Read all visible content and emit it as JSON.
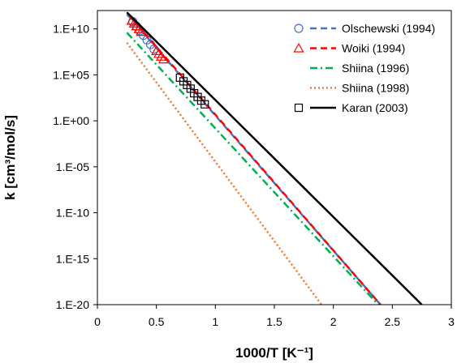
{
  "chart_data": {
    "type": "scatter",
    "xlabel": "1000/T [K⁻¹]",
    "ylabel": "k [cm³/mol/s]",
    "xlim": [
      0,
      3
    ],
    "ylim_log10": [
      -20,
      12
    ],
    "x_ticks": [
      "0",
      "0.5",
      "1",
      "1.5",
      "2",
      "2.5",
      "3"
    ],
    "y_ticks": [
      "1.E-20",
      "1.E-15",
      "1.E-10",
      "1.E-05",
      "1.E+00",
      "1.E+05",
      "1.E+10"
    ],
    "y_scale": "log",
    "grid": false,
    "legend_position": "top-right",
    "series": [
      {
        "name": "Olschewski (1994)",
        "color": "#4472C4",
        "marker": "circle",
        "line_style": "dashed",
        "line": [
          [
            0.25,
            11.6
          ],
          [
            2.4,
            -20
          ]
        ],
        "points": [
          [
            0.3,
            10.8
          ],
          [
            0.33,
            10.3
          ],
          [
            0.36,
            9.8
          ],
          [
            0.39,
            9.3
          ],
          [
            0.42,
            8.8
          ],
          [
            0.45,
            8.3
          ],
          [
            0.48,
            7.8
          ]
        ]
      },
      {
        "name": "Woiki (1994)",
        "color": "#FF0000",
        "marker": "triangle",
        "line_style": "dashed",
        "line": [
          [
            0.28,
            11.3
          ],
          [
            2.4,
            -20
          ]
        ],
        "points": [
          [
            0.29,
            10.9
          ],
          [
            0.31,
            10.6
          ],
          [
            0.33,
            10.3
          ],
          [
            0.35,
            10.0
          ],
          [
            0.37,
            9.7
          ],
          [
            0.5,
            7.6
          ],
          [
            0.52,
            7.3
          ],
          [
            0.54,
            7.0
          ],
          [
            0.56,
            6.7
          ]
        ]
      },
      {
        "name": "Shiina (1996)",
        "color": "#00B050",
        "marker": "none",
        "line_style": "dashdot",
        "line": [
          [
            0.25,
            9.6
          ],
          [
            2.38,
            -20
          ]
        ],
        "points": []
      },
      {
        "name": "Shiina (1998)",
        "color": "#ED7D31",
        "marker": "none",
        "line_style": "dotted",
        "line": [
          [
            0.25,
            8.5
          ],
          [
            1.9,
            -20
          ]
        ],
        "points": []
      },
      {
        "name": "Karan (2003)",
        "color": "#000000",
        "marker": "square",
        "line_style": "solid",
        "line": [
          [
            0.25,
            11.8
          ],
          [
            2.75,
            -20
          ]
        ],
        "points": [
          [
            0.7,
            4.7
          ],
          [
            0.73,
            4.3
          ],
          [
            0.76,
            3.9
          ],
          [
            0.79,
            3.5
          ],
          [
            0.82,
            3.0
          ],
          [
            0.85,
            2.6
          ],
          [
            0.88,
            2.2
          ],
          [
            0.91,
            1.8
          ]
        ]
      }
    ]
  }
}
